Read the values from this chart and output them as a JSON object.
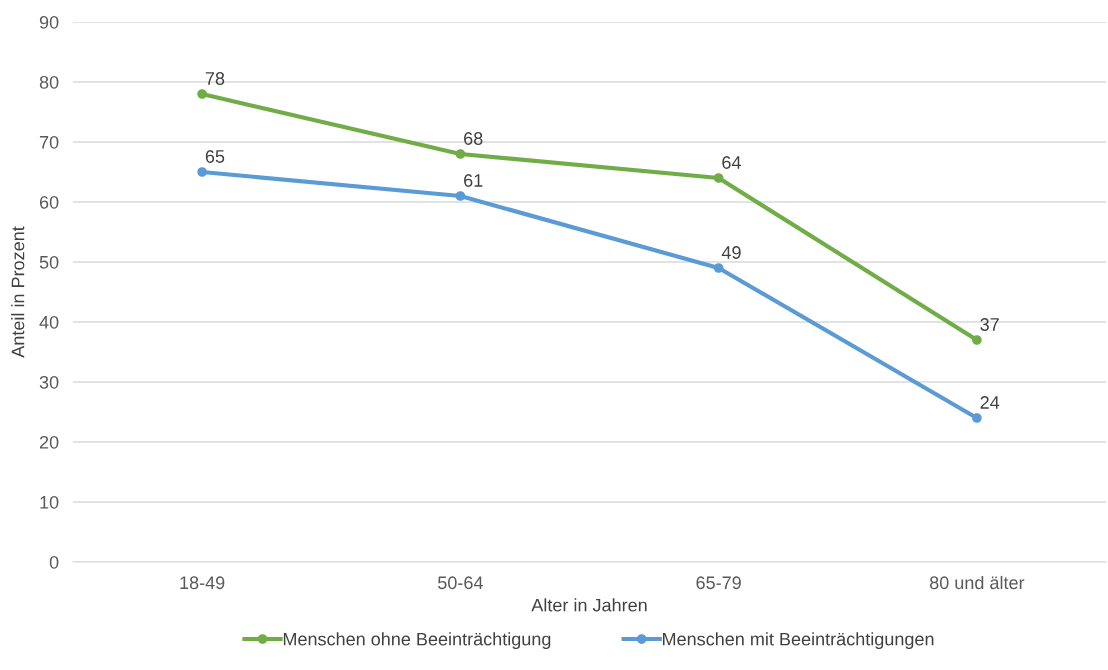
{
  "chart_data": {
    "type": "line",
    "xlabel": "Alter in Jahren",
    "ylabel": "Anteil in Prozent",
    "categories": [
      "18-49",
      "50-64",
      "65-79",
      "80 und älter"
    ],
    "series": [
      {
        "name": "Menschen ohne Beeinträchtigung",
        "color": "#70ad47",
        "values": [
          78,
          68,
          64,
          37
        ]
      },
      {
        "name": "Menschen mit Beeinträchtigungen",
        "color": "#5b9bd5",
        "values": [
          65,
          61,
          49,
          24
        ]
      }
    ],
    "ylim": [
      0,
      90
    ],
    "yticks": [
      0,
      10,
      20,
      30,
      40,
      50,
      60,
      70,
      80,
      90
    ],
    "grid": "y",
    "legend": "bottom",
    "marker": "circle",
    "line_style": "solid",
    "data_labels": true
  }
}
